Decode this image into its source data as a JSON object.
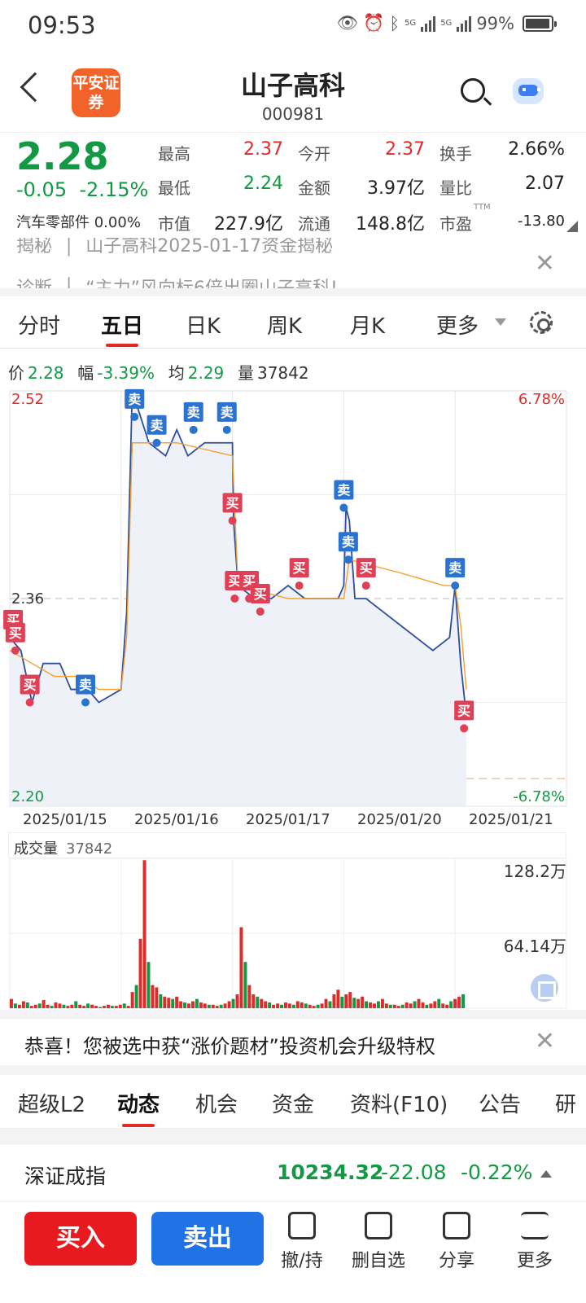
{
  "status_bar": {
    "time": "09:53",
    "battery": "99%",
    "net1": "5G",
    "net2": "5G"
  },
  "header": {
    "broker_logo": "平安证券",
    "stock_name": "山子高科",
    "stock_code": "000981"
  },
  "quote": {
    "price": "2.28",
    "change": "-0.05",
    "change_pct": "-2.15%",
    "sector": "汽车零部件",
    "sector_pct": "0.00%",
    "high_label": "最高",
    "high": "2.37",
    "low_label": "最低",
    "low": "2.24",
    "cap_label": "市值",
    "cap": "227.9亿",
    "open_label": "今开",
    "open": "2.37",
    "amount_label": "金额",
    "amount": "3.97亿",
    "float_label": "流通",
    "float": "148.8亿",
    "turnover_label": "换手",
    "turnover": "2.66%",
    "ratio_label": "量比",
    "ratio": "2.07",
    "pe_label": "市盈",
    "pe_tag": "TTM",
    "pe": "-13.80"
  },
  "news": {
    "row1_tag": "揭秘",
    "row1_text": "山子高科2025-01-17资金揭秘",
    "row2_tag": "诊断",
    "row2_text": "“主力”风向标6倍出圈山子高科!"
  },
  "chart_tabs": [
    "分时",
    "五日",
    "日K",
    "周K",
    "月K",
    "更多"
  ],
  "price_line": {
    "price_label": "价",
    "price": "2.28",
    "range_label": "幅",
    "range": "-3.39%",
    "avg_label": "均",
    "avg": "2.29",
    "vol_label": "量",
    "vol": "37842"
  },
  "chart_data": {
    "type": "line",
    "title": "",
    "x_labels": [
      "2025/01/15",
      "2025/01/16",
      "2025/01/17",
      "2025/01/20",
      "2025/01/21"
    ],
    "ylim": [
      2.2,
      2.52
    ],
    "y_ticks_left": [
      "2.52",
      "2.36",
      "2.20"
    ],
    "y_ticks_right": [
      "6.78%",
      "-6.78%"
    ],
    "reference_price": 2.36,
    "grid": true,
    "series": [
      {
        "name": "价",
        "color": "#2f4d9e",
        "x": [
          0,
          0.1,
          0.2,
          0.3,
          0.45,
          0.55,
          0.7,
          0.8,
          1.0,
          1.05,
          1.1,
          1.25,
          1.4,
          1.5,
          1.6,
          1.75,
          1.9,
          2.0,
          2.01,
          2.05,
          2.2,
          2.35,
          2.5,
          2.65,
          2.8,
          2.95,
          3.0,
          3.02,
          3.05,
          3.1,
          3.2,
          3.35,
          3.5,
          3.65,
          3.8,
          3.95,
          4.0,
          4.05,
          4.1
        ],
        "values": [
          2.33,
          2.32,
          2.28,
          2.31,
          2.31,
          2.29,
          2.29,
          2.28,
          2.29,
          2.35,
          2.52,
          2.48,
          2.47,
          2.49,
          2.47,
          2.48,
          2.48,
          2.48,
          2.42,
          2.37,
          2.36,
          2.36,
          2.37,
          2.36,
          2.36,
          2.36,
          2.37,
          2.43,
          2.42,
          2.36,
          2.36,
          2.35,
          2.34,
          2.33,
          2.32,
          2.33,
          2.37,
          2.31,
          2.27
        ]
      },
      {
        "name": "均",
        "color": "#f2a033",
        "x": [
          0,
          0.2,
          0.4,
          0.6,
          0.8,
          1.0,
          1.05,
          1.1,
          1.5,
          2.0,
          2.05,
          2.5,
          3.0,
          3.05,
          3.5,
          3.9,
          4.0,
          4.05,
          4.1
        ],
        "values": [
          2.32,
          2.31,
          2.3,
          2.3,
          2.29,
          2.29,
          2.33,
          2.48,
          2.48,
          2.47,
          2.37,
          2.36,
          2.36,
          2.39,
          2.38,
          2.37,
          2.37,
          2.34,
          2.29
        ]
      }
    ],
    "annotations": [
      {
        "label": "买",
        "x": 0.03,
        "value": 2.33
      },
      {
        "label": "买",
        "x": 0.05,
        "value": 2.32
      },
      {
        "label": "买",
        "x": 0.18,
        "value": 2.28
      },
      {
        "label": "卖",
        "x": 0.68,
        "value": 2.28
      },
      {
        "label": "卖",
        "x": 1.12,
        "value": 2.5
      },
      {
        "label": "卖",
        "x": 1.32,
        "value": 2.48
      },
      {
        "label": "卖",
        "x": 1.65,
        "value": 2.49
      },
      {
        "label": "卖",
        "x": 1.95,
        "value": 2.49
      },
      {
        "label": "买",
        "x": 2.0,
        "value": 2.42
      },
      {
        "label": "买",
        "x": 2.02,
        "value": 2.36
      },
      {
        "label": "买",
        "x": 2.15,
        "value": 2.36
      },
      {
        "label": "买",
        "x": 2.25,
        "value": 2.35
      },
      {
        "label": "买",
        "x": 2.6,
        "value": 2.37
      },
      {
        "label": "卖",
        "x": 3.0,
        "value": 2.43
      },
      {
        "label": "卖",
        "x": 3.04,
        "value": 2.39
      },
      {
        "label": "买",
        "x": 3.2,
        "value": 2.37
      },
      {
        "label": "卖",
        "x": 4.0,
        "value": 2.37
      },
      {
        "label": "买",
        "x": 4.08,
        "value": 2.26
      }
    ]
  },
  "volume": {
    "title": "成交量",
    "value": "37842",
    "tick_top": "128.2万",
    "tick_mid": "64.14万"
  },
  "volume_data": {
    "type": "bar",
    "ylim": [
      0,
      128.2
    ],
    "unit": "万",
    "values": [
      8,
      4,
      3,
      6,
      5,
      2,
      3,
      4,
      7,
      3,
      2,
      5,
      4,
      3,
      2,
      3,
      6,
      3,
      2,
      4,
      3,
      2,
      1,
      2,
      3,
      2,
      2,
      3,
      4,
      2,
      14,
      20,
      60,
      128,
      40,
      20,
      18,
      12,
      10,
      9,
      8,
      10,
      6,
      5,
      4,
      6,
      8,
      5,
      4,
      3,
      3,
      2,
      3,
      4,
      6,
      8,
      12,
      70,
      40,
      20,
      12,
      10,
      8,
      6,
      5,
      3,
      4,
      3,
      5,
      4,
      3,
      6,
      5,
      4,
      3,
      2,
      3,
      4,
      8,
      6,
      12,
      16,
      10,
      12,
      14,
      9,
      8,
      10,
      6,
      5,
      4,
      6,
      8,
      4,
      3,
      3,
      2,
      3,
      5,
      4,
      6,
      8,
      5,
      3,
      4,
      6,
      8,
      4,
      3,
      6,
      8,
      10,
      12
    ]
  },
  "banner": {
    "text": "恭喜！您被选中获“涨价题材”投资机会升级特权"
  },
  "bottom_tabs": [
    "超级L2",
    "动态",
    "机会",
    "资金",
    "资料(F10)",
    "公告",
    "研"
  ],
  "index": {
    "name": "深证成指",
    "value": "10234.32",
    "change": "-22.08",
    "pct": "-0.22%"
  },
  "toolbar": {
    "buy": "买入",
    "sell": "卖出",
    "tools": [
      "撤/持",
      "删自选",
      "分享",
      "更多"
    ]
  },
  "colors": {
    "up": "#e02b2b",
    "down": "#139944",
    "price_line": "#2f4d9e",
    "avg_line": "#f2a033",
    "buy_button": "#e8191f",
    "sell_button": "#1f73e4"
  }
}
